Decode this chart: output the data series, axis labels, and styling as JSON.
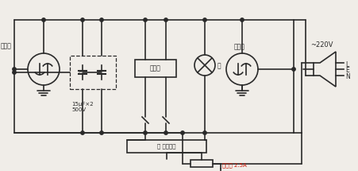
{
  "bg_color": "#f0ede8",
  "line_color": "#2a2a2a",
  "red_color": "#cc1100",
  "labels": {
    "left_motor": "左电机",
    "right_motor": "右电机",
    "monitor": "监控器",
    "lamp": "灯",
    "left_right_lamp": "左 右自刹灯",
    "fuse": "焍断器 2.5A",
    "voltage": "~220V",
    "capacitor": "15μF×2\n500V",
    "N": "N",
    "E": "E",
    "L": "L"
  }
}
